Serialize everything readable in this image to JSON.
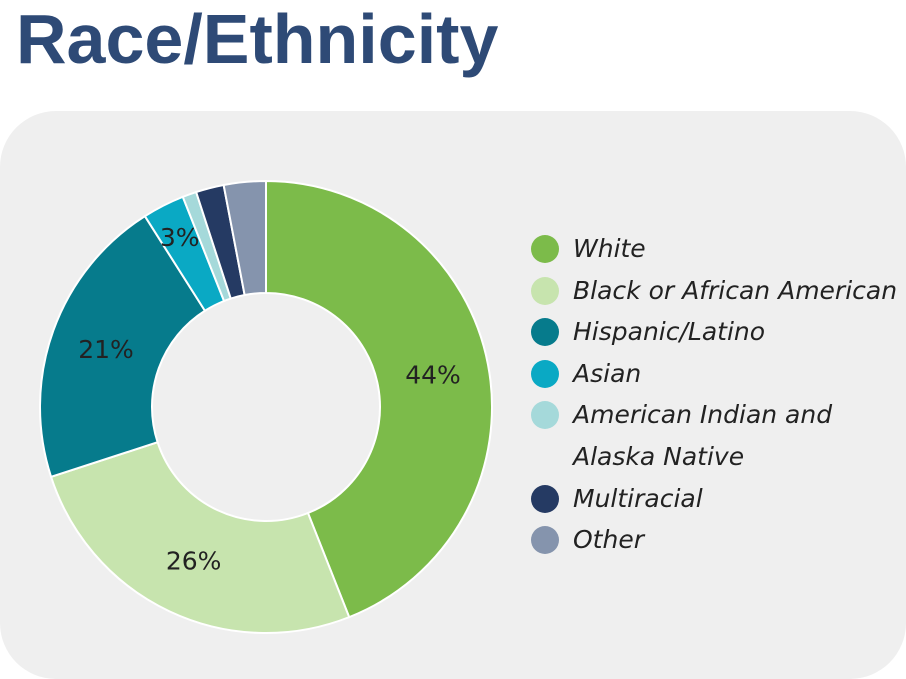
{
  "title": "Race/Ethnicity",
  "colors": {
    "title": "#2e4a76",
    "panel_background": "#efefef"
  },
  "chart_data": {
    "type": "pie",
    "donut": true,
    "categories": [
      "White",
      "Black or African American",
      "Hispanic/Latino",
      "Asian",
      "American Indian and Alaska Native",
      "Multiracial",
      "Other"
    ],
    "values": [
      44,
      26,
      21,
      3,
      1,
      2,
      3
    ],
    "data_labels": [
      "44%",
      "26%",
      "21%",
      "3%",
      "",
      "",
      ""
    ],
    "colors": [
      "#7cbb4a",
      "#c7e4ae",
      "#067b8c",
      "#0aa9c4",
      "#a5d9da",
      "#253a63",
      "#8594ad"
    ],
    "legend_position": "right",
    "label_color": "#222222"
  }
}
